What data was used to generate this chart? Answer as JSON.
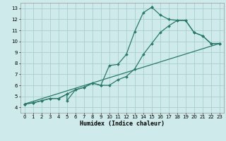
{
  "xlabel": "Humidex (Indice chaleur)",
  "background_color": "#ceeaea",
  "grid_color": "#aacece",
  "line_color": "#2a7a6a",
  "xlim": [
    -0.5,
    23.5
  ],
  "ylim": [
    3.5,
    13.5
  ],
  "xticks": [
    0,
    1,
    2,
    3,
    4,
    5,
    6,
    7,
    8,
    9,
    10,
    11,
    12,
    13,
    14,
    15,
    16,
    17,
    18,
    19,
    20,
    21,
    22,
    23
  ],
  "yticks": [
    4,
    5,
    6,
    7,
    8,
    9,
    10,
    11,
    12,
    13
  ],
  "series1_x": [
    0,
    1,
    2,
    3,
    4,
    5,
    5,
    6,
    7,
    8,
    9,
    10,
    11,
    12,
    13,
    14,
    15,
    15,
    16,
    17,
    18,
    19,
    20,
    21,
    22,
    23
  ],
  "series1_y": [
    4.3,
    4.4,
    4.6,
    4.8,
    4.8,
    5.2,
    4.6,
    5.6,
    5.8,
    6.2,
    6.0,
    7.8,
    7.9,
    8.8,
    10.9,
    12.6,
    13.1,
    13.1,
    12.4,
    12.0,
    11.9,
    11.9,
    10.8,
    10.5,
    9.8,
    9.8
  ],
  "series2_x": [
    0,
    1,
    2,
    3,
    4,
    5,
    6,
    7,
    8,
    9,
    10,
    11,
    12,
    13,
    14,
    15,
    16,
    17,
    18,
    19,
    20,
    21,
    22,
    23
  ],
  "series2_y": [
    4.3,
    4.4,
    4.6,
    4.8,
    4.8,
    5.2,
    5.6,
    5.8,
    6.2,
    6.0,
    6.0,
    6.5,
    6.8,
    7.5,
    8.8,
    9.8,
    10.8,
    11.4,
    11.9,
    11.9,
    10.8,
    10.5,
    9.8,
    9.8
  ],
  "series3_x": [
    0,
    23
  ],
  "series3_y": [
    4.3,
    9.8
  ]
}
